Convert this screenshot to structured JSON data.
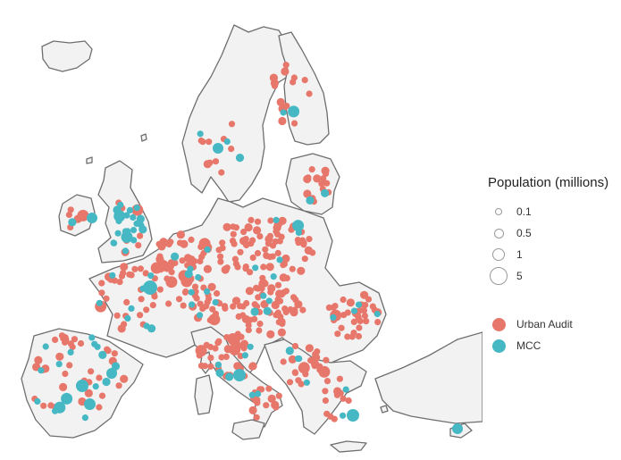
{
  "legend": {
    "size_title": "Population (millions)",
    "sizes": [
      "0.1",
      "0.5",
      "1",
      "5"
    ],
    "source_urban_audit": "Urban Audit",
    "source_mcc": "MCC"
  },
  "colors": {
    "urban_audit": "#e8776b",
    "mcc": "#45b8c4",
    "land": "#f2f2f2",
    "border": "#6e6e6e"
  }
}
